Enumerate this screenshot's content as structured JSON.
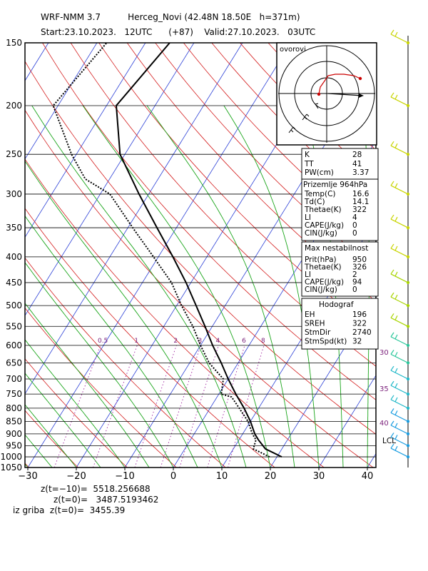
{
  "header": {
    "line1": "WRF-NMM 3.7          Herceg_Novi (42.48N 18.50E   h=371m)",
    "line2": "Start:23.10.2023.   12UTC      (+87)    Valid:27.10.2023.   03UTC"
  },
  "footer": {
    "line1": "z(t=−10)=  5518.256688",
    "line2": "z(t=0)=   3487.5193462",
    "line3": "iz griba  z(t=0)=  3455.39"
  },
  "hodograph": {
    "title": "ovorovi"
  },
  "indices": {
    "k_label": "K",
    "k_value": "28",
    "tt_label": "TT",
    "tt_value": "41",
    "pw_label": "PW(cm)",
    "pw_value": "3.37"
  },
  "surface": {
    "title": "Prizemlje 964hPa",
    "rows": [
      {
        "label": "Temp(C)",
        "value": "16.6"
      },
      {
        "label": "Td(C)",
        "value": "14.1"
      },
      {
        "label": "Thetae(K)",
        "value": "322"
      },
      {
        "label": "LI",
        "value": "4"
      },
      {
        "label": "CAPE(J/kg)",
        "value": "0"
      },
      {
        "label": "CIN(J/kg)",
        "value": "0"
      }
    ]
  },
  "instability": {
    "title": "Max nestabilnost",
    "rows": [
      {
        "label": "Prit(hPa)",
        "value": "950"
      },
      {
        "label": "Thetae(K)",
        "value": "326"
      },
      {
        "label": "LI",
        "value": "2"
      },
      {
        "label": "CAPE(J/kg)",
        "value": "94"
      },
      {
        "label": "CIN(J/kg)",
        "value": "0"
      }
    ]
  },
  "hodo_box": {
    "title": "Hodograf",
    "rows": [
      {
        "label": "EH",
        "value": "196"
      },
      {
        "label": "SREH",
        "value": "322"
      },
      {
        "label": "StmDir",
        "value": "2740"
      },
      {
        "label": "StmSpd(kt)",
        "value": "32"
      }
    ]
  },
  "chart_data": {
    "type": "skew-t log-p",
    "y_axis": "pressure (hPa)",
    "pressure_ticks": [
      150,
      200,
      250,
      300,
      350,
      400,
      450,
      500,
      550,
      600,
      650,
      700,
      750,
      800,
      850,
      900,
      950,
      1000,
      1050
    ],
    "x_ticks": [
      "−30",
      "−20",
      "−10",
      "0",
      "10",
      "20",
      "30",
      "40"
    ],
    "x_tick_values": [
      -30,
      -20,
      -10,
      0,
      10,
      20,
      30,
      40
    ],
    "mixing_ratio_labels": [
      "0.5",
      "1",
      "2",
      "3",
      "4",
      "6",
      "8"
    ],
    "mixing_ratio_values": [
      0.5,
      1,
      2,
      3,
      4,
      6,
      8
    ],
    "isotherm_labels": [
      "30",
      "35",
      "40"
    ],
    "lcl_label": "LCL",
    "lcl_pressure": 925,
    "temperature": [
      {
        "p": 1000,
        "t": 21.0
      },
      {
        "p": 964,
        "t": 16.6
      },
      {
        "p": 925,
        "t": 14.0
      },
      {
        "p": 900,
        "t": 12.5
      },
      {
        "p": 850,
        "t": 10.0
      },
      {
        "p": 800,
        "t": 7.0
      },
      {
        "p": 750,
        "t": 3.5
      },
      {
        "p": 700,
        "t": 0.0
      },
      {
        "p": 650,
        "t": -3.5
      },
      {
        "p": 600,
        "t": -7.5
      },
      {
        "p": 550,
        "t": -11.5
      },
      {
        "p": 500,
        "t": -16.0
      },
      {
        "p": 450,
        "t": -21.0
      },
      {
        "p": 400,
        "t": -27.0
      },
      {
        "p": 350,
        "t": -34.0
      },
      {
        "p": 300,
        "t": -42.0
      },
      {
        "p": 250,
        "t": -51.0
      },
      {
        "p": 200,
        "t": -58.0
      },
      {
        "p": 150,
        "t": -55.0
      }
    ],
    "dewpoint": [
      {
        "p": 1000,
        "t": 18.5
      },
      {
        "p": 964,
        "t": 14.1
      },
      {
        "p": 925,
        "t": 13.5
      },
      {
        "p": 900,
        "t": 12.0
      },
      {
        "p": 850,
        "t": 9.5
      },
      {
        "p": 800,
        "t": 6.0
      },
      {
        "p": 760,
        "t": 3.0
      },
      {
        "p": 750,
        "t": 0.5
      },
      {
        "p": 700,
        "t": -1.0
      },
      {
        "p": 650,
        "t": -6.0
      },
      {
        "p": 600,
        "t": -10.0
      },
      {
        "p": 550,
        "t": -14.0
      },
      {
        "p": 500,
        "t": -19.0
      },
      {
        "p": 450,
        "t": -24.0
      },
      {
        "p": 400,
        "t": -31.0
      },
      {
        "p": 350,
        "t": -39.0
      },
      {
        "p": 300,
        "t": -48.0
      },
      {
        "p": 280,
        "t": -55.0
      },
      {
        "p": 250,
        "t": -61.0
      },
      {
        "p": 200,
        "t": -71.0
      },
      {
        "p": 150,
        "t": -68.0
      }
    ],
    "wind_barb_pressures": [
      150,
      200,
      250,
      300,
      350,
      400,
      450,
      500,
      550,
      600,
      650,
      700,
      750,
      800,
      850,
      900,
      950,
      1000
    ]
  }
}
